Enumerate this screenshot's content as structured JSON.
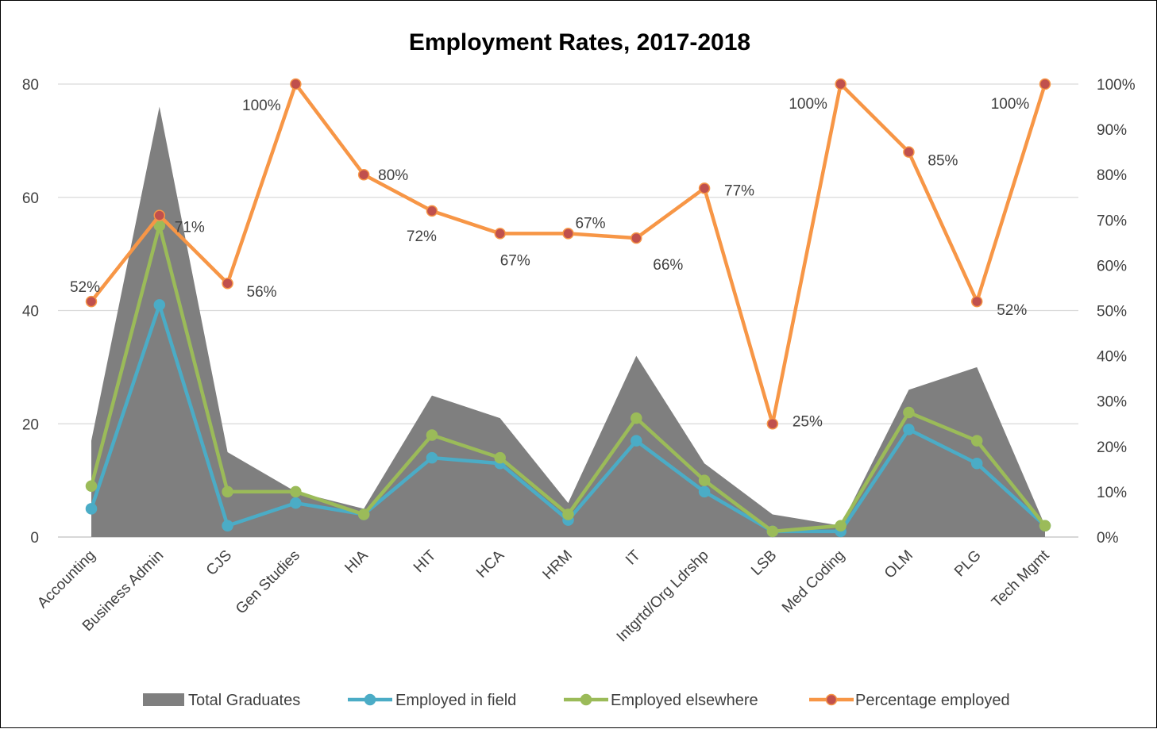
{
  "chart_data": {
    "type": "area-line-combo",
    "title": "Employment Rates, 2017-2018",
    "categories": [
      "Accounting",
      "Business Admin",
      "CJS",
      "Gen Studies",
      "HIA",
      "HIT",
      "HCA",
      "HRM",
      "IT",
      "Intgrtd/Org Ldrshp",
      "LSB",
      "Med Coding",
      "OLM",
      "PLG",
      "Tech Mgmt"
    ],
    "left_axis": {
      "min": 0,
      "max": 80,
      "ticks": [
        "0",
        "20",
        "40",
        "60",
        "80"
      ]
    },
    "right_axis": {
      "min": 0,
      "max": 100,
      "ticks": [
        "0%",
        "10%",
        "20%",
        "30%",
        "40%",
        "50%",
        "60%",
        "70%",
        "80%",
        "90%",
        "100%"
      ]
    },
    "gridlines": true,
    "legend_position": "bottom",
    "series": [
      {
        "name": "Total Graduates",
        "type": "area",
        "axis": "left",
        "color": "#7f7f7f",
        "values": [
          17,
          76,
          15,
          8,
          5,
          25,
          21,
          6,
          32,
          13,
          4,
          2,
          26,
          30,
          2
        ]
      },
      {
        "name": "Employed in field",
        "type": "line",
        "axis": "left",
        "color": "#4bacc6",
        "values": [
          5,
          41,
          2,
          6,
          4,
          14,
          13,
          3,
          17,
          8,
          1,
          1,
          19,
          13,
          2
        ]
      },
      {
        "name": "Employed elsewhere",
        "type": "line",
        "axis": "left",
        "color": "#9bbb59",
        "values": [
          9,
          55,
          8,
          8,
          4,
          18,
          14,
          4,
          21,
          10,
          1,
          2,
          22,
          17,
          2
        ]
      },
      {
        "name": "Percentage employed",
        "type": "line",
        "axis": "right",
        "color": "#f79646",
        "marker_color": "#c0504d",
        "values": [
          52,
          71,
          56,
          100,
          80,
          72,
          67,
          67,
          66,
          77,
          25,
          100,
          85,
          52,
          100
        ]
      }
    ],
    "data_labels": [
      "52%",
      "71%",
      "56%",
      "100%",
      "80%",
      "72%",
      "67%",
      "67%",
      "66%",
      "77%",
      "25%",
      "100%",
      "85%",
      "52%",
      "100%"
    ]
  }
}
